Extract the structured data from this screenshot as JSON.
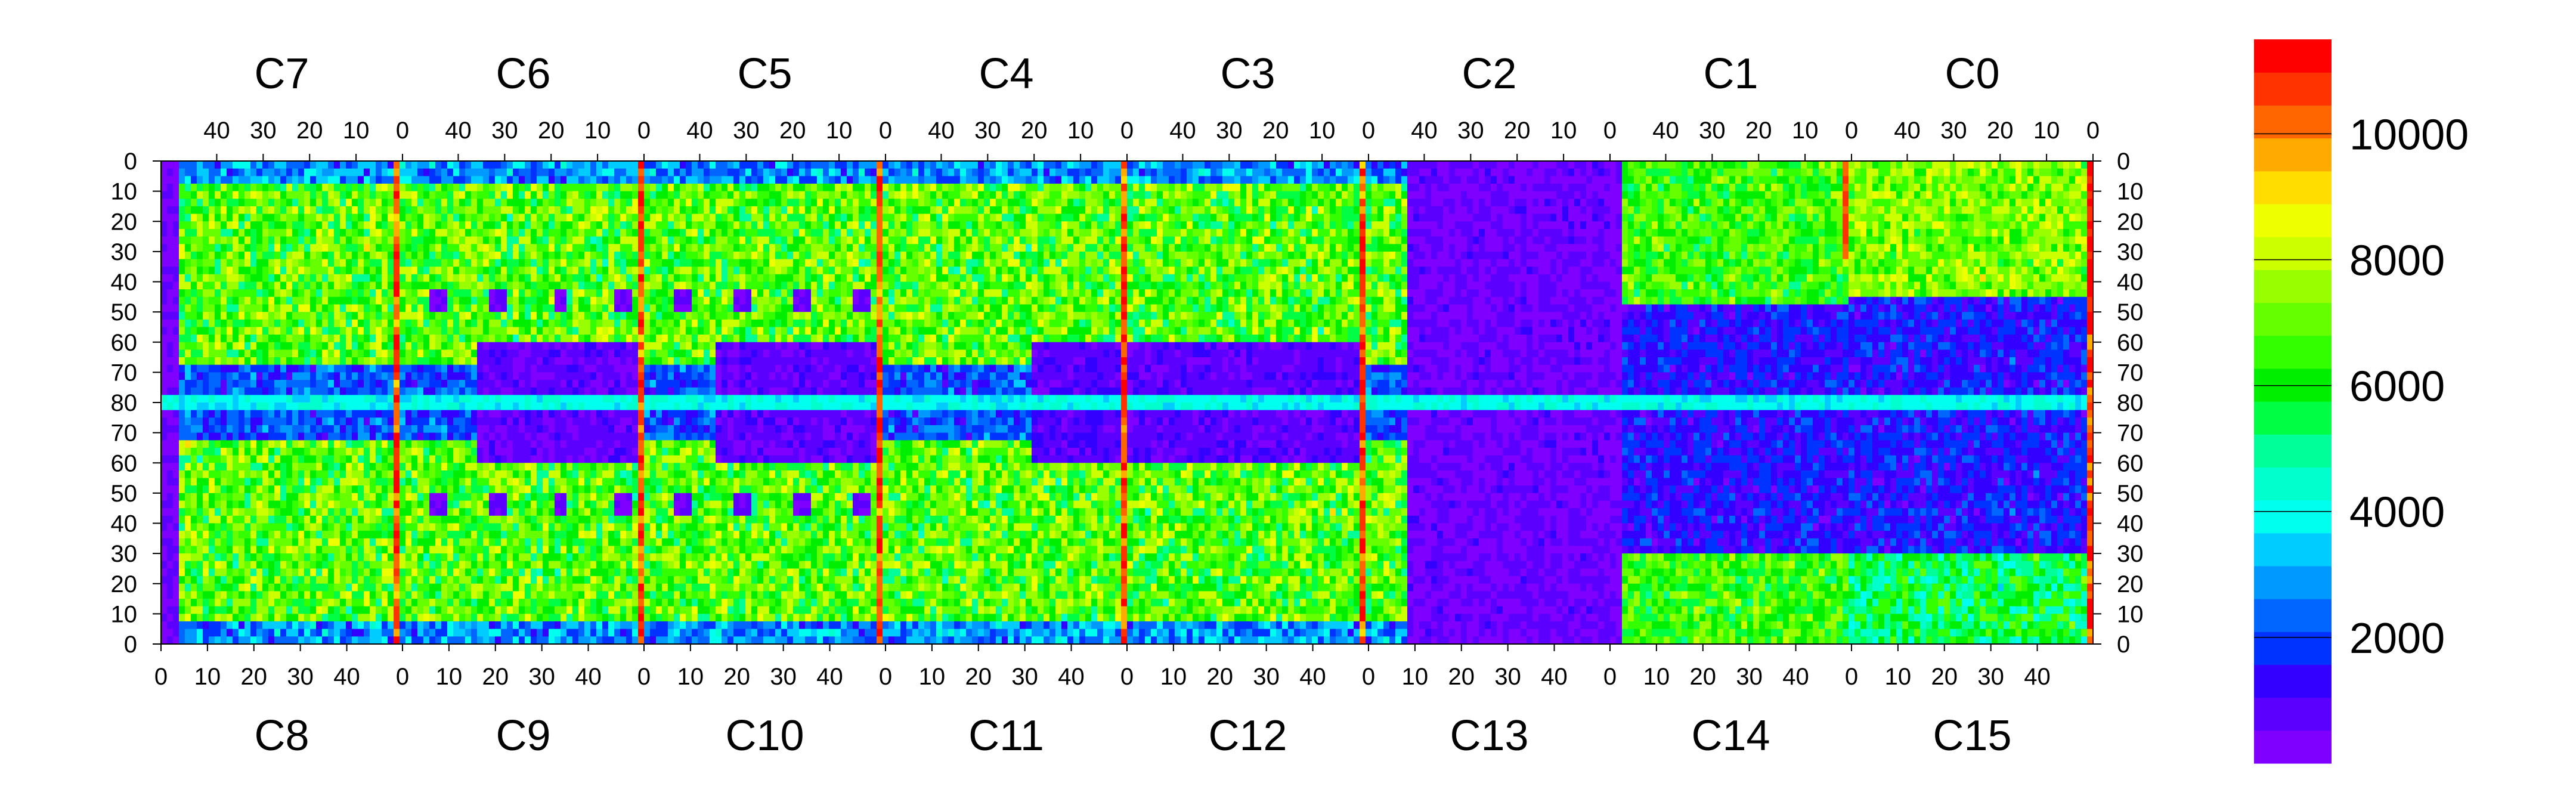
{
  "chart_data": {
    "type": "heatmap",
    "title": "",
    "top_chip_labels": [
      "C7",
      "C6",
      "C5",
      "C4",
      "C3",
      "C2",
      "C1",
      "C0"
    ],
    "bottom_chip_labels": [
      "C8",
      "C9",
      "C10",
      "C11",
      "C12",
      "C13",
      "C14",
      "C15"
    ],
    "top_x_ticks_per_chip": [
      "40",
      "30",
      "20",
      "10",
      "0"
    ],
    "bottom_x_ticks_per_chip": [
      "0",
      "10",
      "20",
      "30",
      "40"
    ],
    "y_ticks_top_half": [
      "0",
      "10",
      "20",
      "30",
      "40",
      "50",
      "60",
      "70",
      "80"
    ],
    "y_ticks_bottom_half": [
      "70",
      "60",
      "50",
      "40",
      "30",
      "20",
      "10",
      "0"
    ],
    "grid": {
      "chips_per_row": 8,
      "columns_per_chip": 52,
      "rows_per_half": 80
    },
    "zlim": [
      0,
      11500
    ],
    "colorbar": {
      "tick_labels": [
        "2000",
        "4000",
        "6000",
        "8000",
        "10000"
      ],
      "tick_values": [
        2000,
        4000,
        6000,
        8000,
        10000
      ],
      "colors": [
        "#7f00ff",
        "#5b00ff",
        "#3300ff",
        "#0033ff",
        "#0066ff",
        "#0099ff",
        "#00ccff",
        "#00ffee",
        "#00ffcc",
        "#00ff99",
        "#00ff44",
        "#00ee00",
        "#33ff00",
        "#66ff00",
        "#99ff00",
        "#ccff00",
        "#eeff00",
        "#ffdd00",
        "#ffaa00",
        "#ff6600",
        "#ff3300",
        "#ff0000"
      ]
    },
    "regions": {
      "low_occupancy_chips": [
        "C2/C13",
        "C1/C14 (partial)"
      ],
      "hot_columns": [
        "C7 col 0",
        "C6 col 0",
        "C5 col 0",
        "C4 col 0",
        "C3 col 0",
        "C1 col 0",
        "C0 col 0"
      ]
    }
  }
}
